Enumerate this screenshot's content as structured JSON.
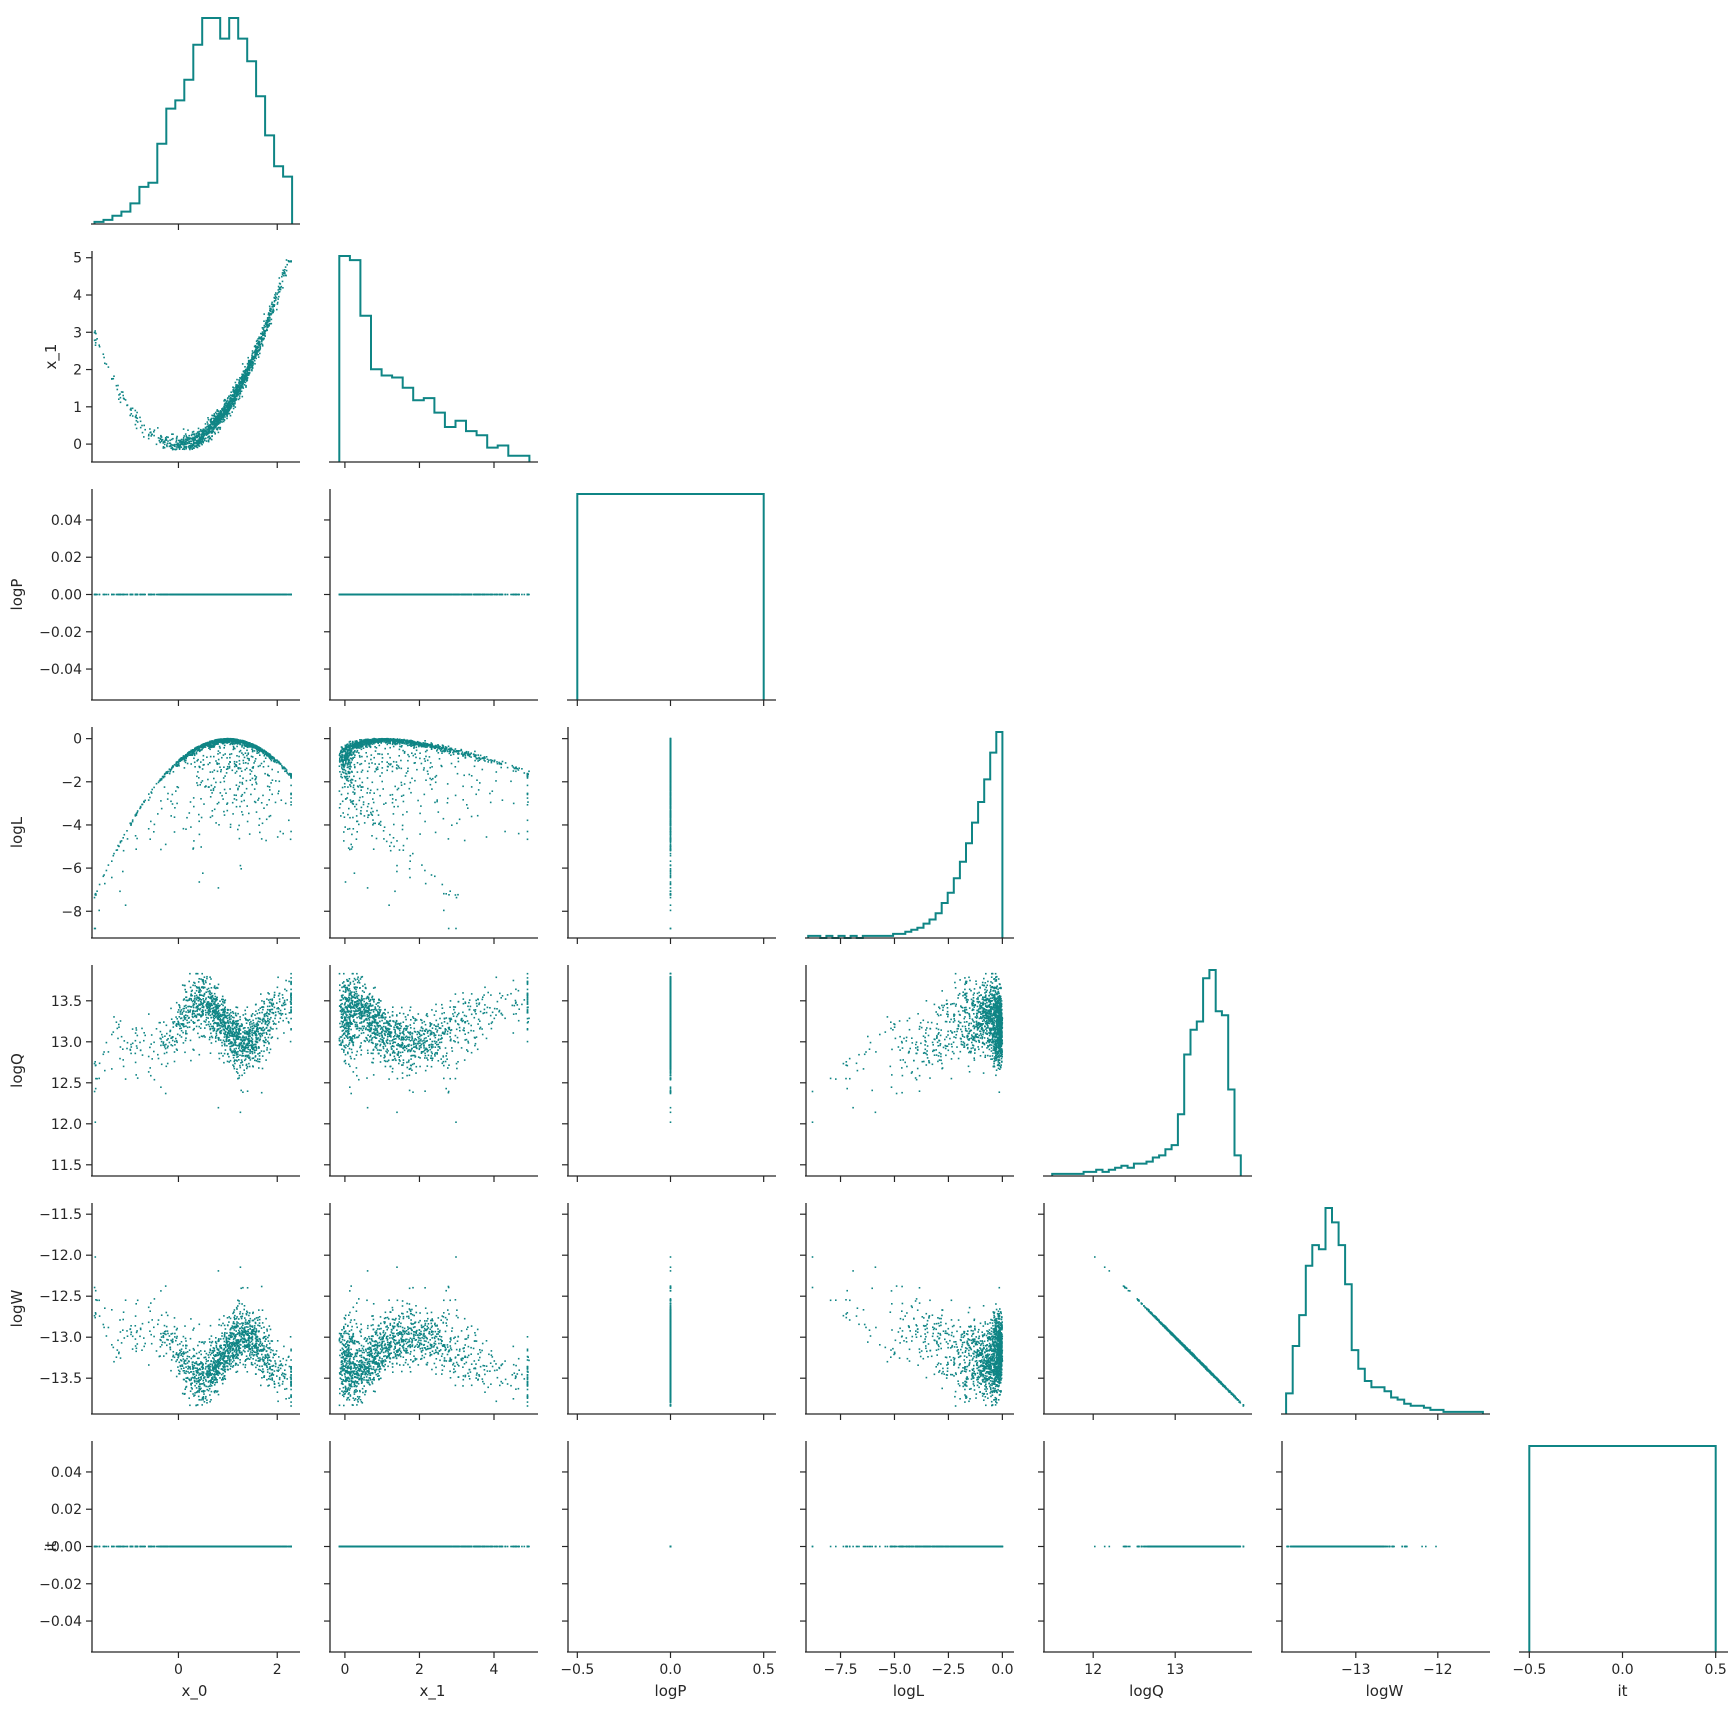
{
  "chart_data": {
    "type": "corner-pairplot",
    "color": "#0f8585",
    "variables": [
      "x_0",
      "x_1",
      "logP",
      "logL",
      "logQ",
      "logW",
      "it"
    ],
    "axes": {
      "x_0": {
        "lim": [
          -1.75,
          2.4
        ],
        "ticks": [
          {
            "v": 0,
            "label": "0"
          },
          {
            "v": 2,
            "label": "2"
          }
        ]
      },
      "x_1": {
        "lim": [
          -0.4,
          5.1
        ],
        "ticks": [
          {
            "v": 0,
            "label": "0"
          },
          {
            "v": 1,
            "label": "1"
          },
          {
            "v": 2,
            "label": "2"
          },
          {
            "v": 3,
            "label": "3"
          },
          {
            "v": 4,
            "label": "4"
          },
          {
            "v": 5,
            "label": "5"
          }
        ]
      },
      "logP": {
        "lim": [
          -0.055,
          0.055
        ],
        "ticks": [
          {
            "v": 0.04,
            "label": "0.04"
          },
          {
            "v": 0.02,
            "label": "0.02"
          },
          {
            "v": 0,
            "label": "0.00"
          },
          {
            "v": -0.02,
            "label": "−0.02"
          },
          {
            "v": -0.04,
            "label": "−0.04"
          }
        ]
      },
      "logL": {
        "lim": [
          -9.1,
          0.4
        ],
        "ticks": [
          {
            "v": 0,
            "label": "0"
          },
          {
            "v": -2,
            "label": "−2"
          },
          {
            "v": -4,
            "label": "−4"
          },
          {
            "v": -6,
            "label": "−6"
          },
          {
            "v": -8,
            "label": "−8"
          }
        ]
      },
      "logQ": {
        "lim": [
          11.4,
          13.9
        ],
        "ticks": [
          {
            "v": 13.5,
            "label": "13.5"
          },
          {
            "v": 13,
            "label": "13.0"
          },
          {
            "v": 12.5,
            "label": "12.5"
          },
          {
            "v": 12,
            "label": "12.0"
          },
          {
            "v": 11.5,
            "label": "11.5"
          }
        ]
      },
      "logW": {
        "lim": [
          -13.9,
          -11.4
        ],
        "ticks": [
          {
            "v": -11.5,
            "label": "−11.5"
          },
          {
            "v": -12,
            "label": "−12.0"
          },
          {
            "v": -12.5,
            "label": "−12.5"
          },
          {
            "v": -13,
            "label": "−13.0"
          },
          {
            "v": -13.5,
            "label": "−13.5"
          }
        ]
      },
      "it": {
        "lim": [
          -0.055,
          0.055
        ],
        "ticks": [
          {
            "v": 0.04,
            "label": "0.04"
          },
          {
            "v": 0.02,
            "label": "0.02"
          },
          {
            "v": 0,
            "label": "0.00"
          },
          {
            "v": -0.02,
            "label": "−0.02"
          },
          {
            "v": -0.04,
            "label": "−0.04"
          }
        ]
      }
    },
    "bottom_axes": {
      "x_0": {
        "lim": [
          -1.75,
          2.4
        ],
        "ticks": [
          {
            "v": 0,
            "label": "0"
          },
          {
            "v": 2,
            "label": "2"
          }
        ]
      },
      "x_1": {
        "lim": [
          -0.4,
          5.1
        ],
        "ticks": [
          {
            "v": 0,
            "label": "0"
          },
          {
            "v": 2,
            "label": "2"
          },
          {
            "v": 4,
            "label": "4"
          }
        ]
      },
      "logP": {
        "lim": [
          -0.55,
          0.55
        ],
        "ticks": [
          {
            "v": -0.5,
            "label": "−0.5"
          },
          {
            "v": 0,
            "label": "0.0"
          },
          {
            "v": 0.5,
            "label": "0.5"
          }
        ]
      },
      "logL": {
        "lim": [
          -9.1,
          0.4
        ],
        "ticks": [
          {
            "v": -7.5,
            "label": "−7.5"
          },
          {
            "v": -5,
            "label": "−5.0"
          },
          {
            "v": -2.5,
            "label": "−2.5"
          },
          {
            "v": 0,
            "label": "0.0"
          }
        ]
      },
      "logQ": {
        "lim": [
          11.4,
          13.9
        ],
        "ticks": [
          {
            "v": 12,
            "label": "12"
          },
          {
            "v": 13,
            "label": "13"
          }
        ]
      },
      "logW": {
        "lim": [
          -13.9,
          -11.4
        ],
        "ticks": [
          {
            "v": -13,
            "label": "−13"
          },
          {
            "v": -12,
            "label": "−12"
          }
        ]
      },
      "it": {
        "lim": [
          -0.55,
          0.55
        ],
        "ticks": [
          {
            "v": -0.5,
            "label": "−0.5"
          },
          {
            "v": 0,
            "label": "0.0"
          },
          {
            "v": 0.5,
            "label": "0.5"
          }
        ]
      }
    },
    "histograms": {
      "x_0": {
        "edges_range": [
          -1.7,
          2.3
        ],
        "counts": [
          1,
          2,
          4,
          6,
          10,
          18,
          20,
          39,
          56,
          60,
          70,
          87,
          100,
          100,
          90,
          100,
          90,
          79,
          62,
          43,
          28,
          23
        ]
      },
      "x_1": {
        "edges_range": [
          -0.15,
          4.95
        ],
        "counts": [
          100,
          98,
          71,
          45,
          42,
          41,
          36,
          30,
          31,
          24,
          17,
          20,
          15,
          13,
          7,
          8,
          3,
          3
        ]
      },
      "logP": {
        "edges_range": [
          -0.5,
          0.5
        ],
        "counts": [
          100
        ]
      },
      "logL": {
        "edges_range": [
          -9.0,
          0.0
        ],
        "counts": [
          1,
          1,
          0,
          1,
          0,
          1,
          0,
          1,
          0,
          1,
          1,
          1,
          1,
          1,
          2,
          2,
          3,
          4,
          5,
          7,
          9,
          12,
          17,
          22,
          29,
          37,
          46,
          56,
          66,
          77,
          90,
          100
        ]
      },
      "logQ": {
        "edges_range": [
          11.5,
          13.8
        ],
        "counts": [
          1,
          1,
          1,
          1,
          1,
          2,
          2,
          3,
          2,
          3,
          4,
          5,
          4,
          6,
          6,
          7,
          9,
          10,
          13,
          15,
          30,
          59,
          71,
          75,
          96,
          100,
          80,
          78,
          42,
          10
        ]
      },
      "logW": {
        "edges_range": [
          -13.85,
          -11.45
        ],
        "counts": [
          10,
          33,
          48,
          72,
          82,
          80,
          100,
          93,
          82,
          63,
          31,
          22,
          16,
          13,
          13,
          11,
          8,
          7,
          5,
          4,
          4,
          3,
          2,
          2,
          1,
          1,
          1,
          1,
          1,
          1
        ]
      },
      "it": {
        "edges_range": [
          -0.5,
          0.5
        ],
        "counts": [
          100
        ]
      }
    },
    "scatter_n": 1500,
    "note_relations": "x_1 ≈ x_0^2 (banana shape); logQ ≈ -logW; logP and it are constant 0"
  }
}
